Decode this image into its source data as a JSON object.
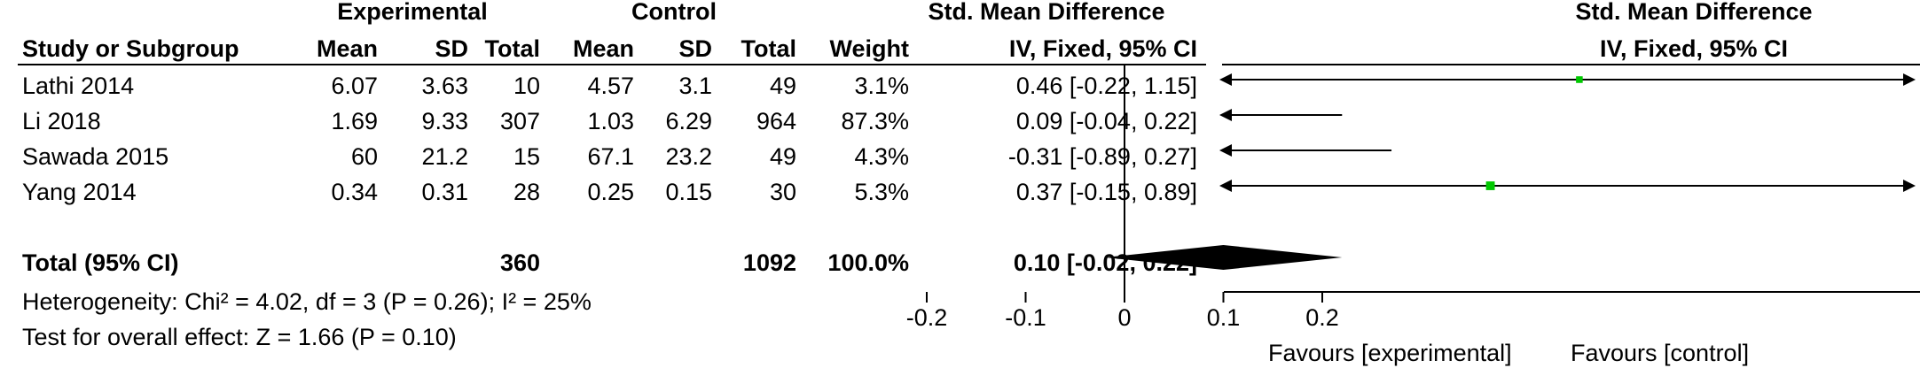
{
  "headers": {
    "experimental": "Experimental",
    "control": "Control",
    "smd_left": "Std. Mean Difference",
    "smd_right": "Std. Mean Difference",
    "study": "Study or Subgroup",
    "mean_e": "Mean",
    "sd_e": "SD",
    "total_e": "Total",
    "mean_c": "Mean",
    "sd_c": "SD",
    "total_c": "Total",
    "weight": "Weight",
    "method_left": "IV, Fixed, 95% CI",
    "method_right": "IV, Fixed, 95% CI"
  },
  "studies": [
    {
      "name": "Lathi 2014",
      "mean_e": "6.07",
      "sd_e": "3.63",
      "total_e": "10",
      "mean_c": "4.57",
      "sd_c": "3.1",
      "total_c": "49",
      "weight": "3.1%",
      "ci_text": "0.46 [-0.22, 1.15]"
    },
    {
      "name": "Li 2018",
      "mean_e": "1.69",
      "sd_e": "9.33",
      "total_e": "307",
      "mean_c": "1.03",
      "sd_c": "6.29",
      "total_c": "964",
      "weight": "87.3%",
      "ci_text": "0.09 [-0.04, 0.22]"
    },
    {
      "name": "Sawada 2015",
      "mean_e": "60",
      "sd_e": "21.2",
      "total_e": "15",
      "mean_c": "67.1",
      "sd_c": "23.2",
      "total_c": "49",
      "weight": "4.3%",
      "ci_text": "-0.31 [-0.89, 0.27]"
    },
    {
      "name": "Yang 2014",
      "mean_e": "0.34",
      "sd_e": "0.31",
      "total_e": "28",
      "mean_c": "0.25",
      "sd_c": "0.15",
      "total_c": "30",
      "weight": "5.3%",
      "ci_text": "0.37 [-0.15, 0.89]"
    }
  ],
  "total": {
    "label": "Total (95% CI)",
    "total_e": "360",
    "total_c": "1092",
    "weight": "100.0%",
    "ci_text": "0.10 [-0.02, 0.22]"
  },
  "heterogeneity": "Heterogeneity: Chi² = 4.02, df = 3 (P = 0.26); I² = 25%",
  "overall_effect": "Test for overall effect: Z = 1.66 (P = 0.10)",
  "favours_left": "Favours [experimental]",
  "favours_right": "Favours [control]",
  "colors": {
    "square": "#00c800",
    "diamond": "#000000",
    "line": "#000000"
  },
  "chart_data": {
    "type": "forest",
    "xlim": [
      -0.25,
      0.25
    ],
    "ticks": [
      -0.2,
      -0.1,
      0,
      0.1,
      0.2
    ],
    "tick_labels": [
      "-0.2",
      "-0.1",
      "0",
      "0.1",
      "0.2"
    ],
    "series": [
      {
        "name": "Lathi 2014",
        "estimate": 0.46,
        "lower": -0.22,
        "upper": 1.15,
        "weight": 3.1
      },
      {
        "name": "Li 2018",
        "estimate": 0.09,
        "lower": -0.04,
        "upper": 0.22,
        "weight": 87.3
      },
      {
        "name": "Sawada 2015",
        "estimate": -0.31,
        "lower": -0.89,
        "upper": 0.27,
        "weight": 4.3
      },
      {
        "name": "Yang 2014",
        "estimate": 0.37,
        "lower": -0.15,
        "upper": 0.89,
        "weight": 5.3
      }
    ],
    "pooled": {
      "estimate": 0.1,
      "lower": -0.02,
      "upper": 0.22
    }
  }
}
